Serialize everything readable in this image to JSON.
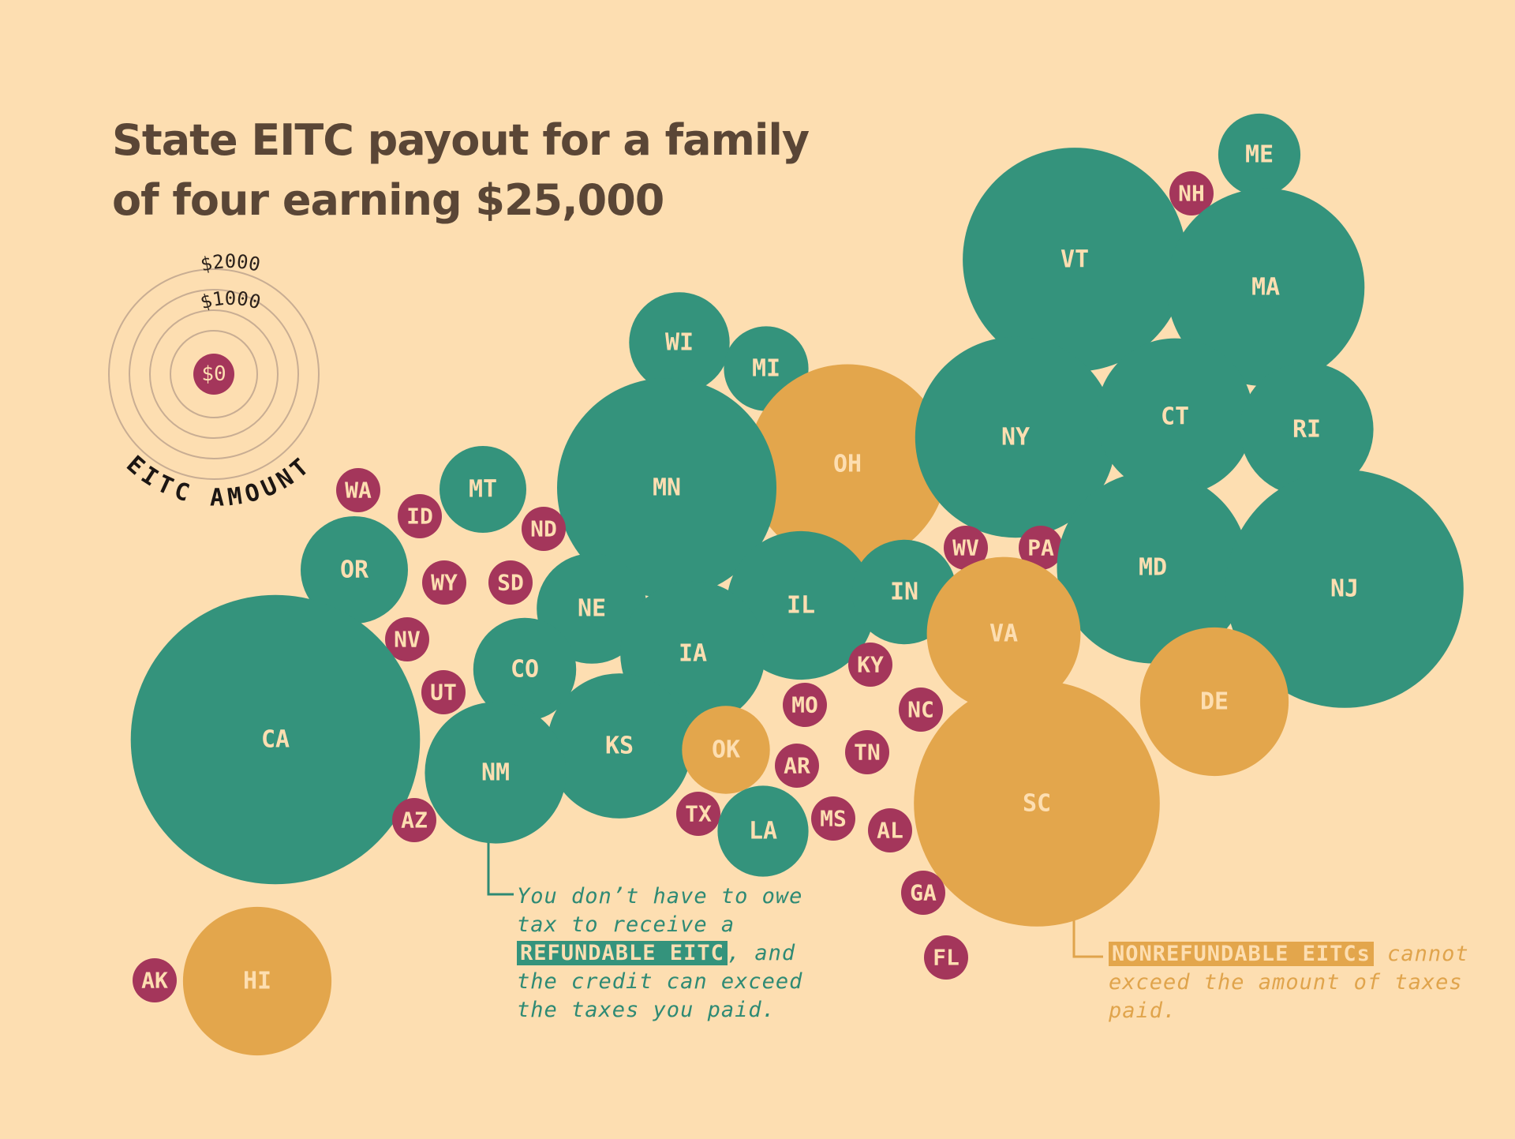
{
  "title": "State EITC payout for a family of four earning $25,000",
  "legend": {
    "title": "EITC AMOUNT",
    "rings": [
      "$2000",
      "$1000",
      "$0"
    ]
  },
  "colors": {
    "background": "#fddeb1",
    "refundable": "#34937c",
    "nonrefundable": "#e3a64c",
    "none": "#a4365b",
    "title": "#5a4636"
  },
  "annotations": {
    "refundable": {
      "pre": "You don’t have to owe tax to receive a ",
      "highlight": "REFUNDABLE EITC",
      "post": ", and the credit can exceed the taxes you paid."
    },
    "nonrefundable": {
      "highlight": "NONREFUNDABLE EITCs",
      "post": " cannot exceed the amount of taxes paid."
    }
  },
  "chart_data": {
    "type": "bubble",
    "title": "State EITC payout for a family of four earning $25,000",
    "size_legend": [
      "$0",
      "$1000",
      "$2000"
    ],
    "categories": [
      "refundable",
      "nonrefundable",
      "none"
    ],
    "states": [
      {
        "state": "ME",
        "type": "refundable",
        "value": 80
      },
      {
        "state": "NH",
        "type": "none",
        "value": 0
      },
      {
        "state": "VT",
        "type": "refundable",
        "value": 1780
      },
      {
        "state": "MA",
        "type": "refundable",
        "value": 1300
      },
      {
        "state": "WI",
        "type": "refundable",
        "value": 175
      },
      {
        "state": "MI",
        "type": "refundable",
        "value": 90
      },
      {
        "state": "OH",
        "type": "nonrefundable",
        "value": 1330
      },
      {
        "state": "NY",
        "type": "refundable",
        "value": 1350
      },
      {
        "state": "CT",
        "type": "refundable",
        "value": 700
      },
      {
        "state": "RI",
        "type": "refundable",
        "value": 440
      },
      {
        "state": "MN",
        "type": "refundable",
        "value": 1690
      },
      {
        "state": "WA",
        "type": "none",
        "value": 0
      },
      {
        "state": "ID",
        "type": "none",
        "value": 0
      },
      {
        "state": "MT",
        "type": "refundable",
        "value": 100
      },
      {
        "state": "ND",
        "type": "none",
        "value": 0
      },
      {
        "state": "OR",
        "type": "refundable",
        "value": 220
      },
      {
        "state": "WY",
        "type": "none",
        "value": 0
      },
      {
        "state": "SD",
        "type": "none",
        "value": 0
      },
      {
        "state": "NE",
        "type": "refundable",
        "value": 240
      },
      {
        "state": "IL",
        "type": "refundable",
        "value": 600
      },
      {
        "state": "IN",
        "type": "refundable",
        "value": 200
      },
      {
        "state": "WV",
        "type": "none",
        "value": 0
      },
      {
        "state": "PA",
        "type": "none",
        "value": 0
      },
      {
        "state": "MD",
        "type": "refundable",
        "value": 1200
      },
      {
        "state": "NJ",
        "type": "refundable",
        "value": 2070
      },
      {
        "state": "VA",
        "type": "nonrefundable",
        "value": 660
      },
      {
        "state": "NV",
        "type": "none",
        "value": 0
      },
      {
        "state": "CO",
        "type": "refundable",
        "value": 190
      },
      {
        "state": "IA",
        "type": "refundable",
        "value": 560
      },
      {
        "state": "KY",
        "type": "none",
        "value": 0
      },
      {
        "state": "DE",
        "type": "nonrefundable",
        "value": 600
      },
      {
        "state": "CA",
        "type": "refundable",
        "value": 3310
      },
      {
        "state": "UT",
        "type": "none",
        "value": 0
      },
      {
        "state": "MO",
        "type": "none",
        "value": 0
      },
      {
        "state": "NC",
        "type": "none",
        "value": 0
      },
      {
        "state": "KS",
        "type": "refundable",
        "value": 560
      },
      {
        "state": "OK",
        "type": "nonrefundable",
        "value": 105
      },
      {
        "state": "TN",
        "type": "none",
        "value": 0
      },
      {
        "state": "SC",
        "type": "nonrefundable",
        "value": 2240
      },
      {
        "state": "NM",
        "type": "refundable",
        "value": 520
      },
      {
        "state": "AR",
        "type": "none",
        "value": 0
      },
      {
        "state": "AZ",
        "type": "none",
        "value": 0
      },
      {
        "state": "TX",
        "type": "none",
        "value": 0
      },
      {
        "state": "MS",
        "type": "none",
        "value": 0
      },
      {
        "state": "LA",
        "type": "refundable",
        "value": 120
      },
      {
        "state": "AL",
        "type": "none",
        "value": 0
      },
      {
        "state": "GA",
        "type": "none",
        "value": 0
      },
      {
        "state": "FL",
        "type": "none",
        "value": 0
      },
      {
        "state": "AK",
        "type": "none",
        "value": 0
      },
      {
        "state": "HI",
        "type": "nonrefundable",
        "value": 600
      }
    ]
  }
}
